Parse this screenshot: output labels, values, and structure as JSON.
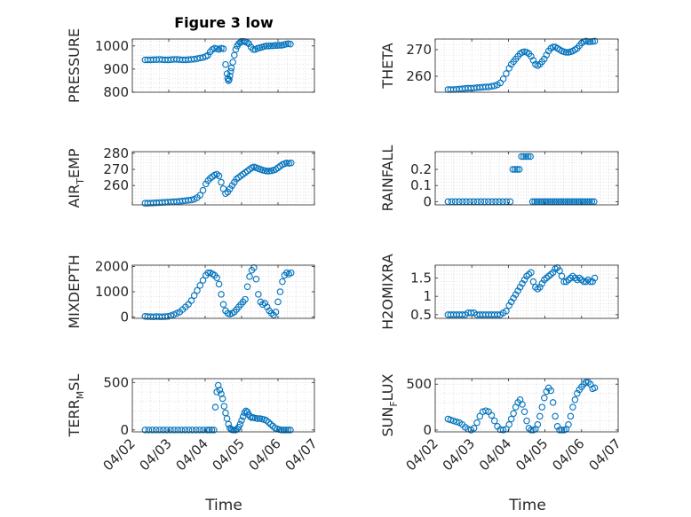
{
  "figure": {
    "title": "Figure 3 low",
    "xlabel": "Time"
  },
  "chart_data": [
    {
      "type": "scatter",
      "ylabel": "PRESSURE",
      "ylim": [
        800,
        1030
      ],
      "yticks": [
        800,
        900,
        1000
      ],
      "xlim": [
        0,
        5
      ],
      "xticks": [
        "04/02",
        "04/03",
        "04/04",
        "04/05",
        "04/06",
        "04/07"
      ],
      "grid": true,
      "x": [
        0.35,
        0.42,
        0.5,
        0.58,
        0.66,
        0.74,
        0.82,
        0.9,
        0.98,
        1.06,
        1.14,
        1.22,
        1.3,
        1.38,
        1.46,
        1.54,
        1.62,
        1.7,
        1.78,
        1.86,
        1.94,
        2.02,
        2.08,
        2.14,
        2.2,
        2.26,
        2.32,
        2.38,
        2.44,
        2.5,
        2.56,
        2.6,
        2.62,
        2.64,
        2.66,
        2.68,
        2.7,
        2.72,
        2.76,
        2.8,
        2.84,
        2.88,
        2.92,
        2.96,
        3.0,
        3.05,
        3.1,
        3.15,
        3.2,
        3.26,
        3.32,
        3.38,
        3.44,
        3.5,
        3.56,
        3.62,
        3.68,
        3.74,
        3.8,
        3.86,
        3.92,
        3.98,
        4.04,
        4.1,
        4.16,
        4.22,
        4.28,
        4.34
      ],
      "y": [
        940,
        940,
        940,
        941,
        941,
        942,
        941,
        940,
        940,
        941,
        942,
        942,
        941,
        940,
        940,
        941,
        942,
        943,
        945,
        948,
        950,
        955,
        960,
        975,
        985,
        990,
        988,
        985,
        990,
        988,
        920,
        880,
        860,
        850,
        855,
        870,
        890,
        905,
        930,
        960,
        985,
        1000,
        1010,
        1015,
        1020,
        1020,
        1018,
        1015,
        1010,
        995,
        985,
        985,
        990,
        992,
        995,
        998,
        1000,
        1000,
        1001,
        1001,
        1002,
        1002,
        1003,
        1003,
        1005,
        1008,
        1010,
        1008
      ]
    },
    {
      "type": "scatter",
      "ylabel": "THETA",
      "ylim": [
        254,
        274
      ],
      "yticks": [
        260,
        270
      ],
      "xlim": [
        0,
        5
      ],
      "xticks": [
        "04/02",
        "04/03",
        "04/04",
        "04/05",
        "04/06",
        "04/07"
      ],
      "grid": true,
      "x": [
        0.35,
        0.42,
        0.5,
        0.58,
        0.66,
        0.74,
        0.82,
        0.9,
        0.98,
        1.06,
        1.14,
        1.22,
        1.3,
        1.38,
        1.46,
        1.54,
        1.62,
        1.7,
        1.78,
        1.86,
        1.94,
        2.02,
        2.08,
        2.14,
        2.2,
        2.26,
        2.32,
        2.38,
        2.44,
        2.5,
        2.56,
        2.62,
        2.68,
        2.74,
        2.8,
        2.86,
        2.92,
        2.98,
        3.04,
        3.1,
        3.16,
        3.22,
        3.28,
        3.34,
        3.4,
        3.46,
        3.52,
        3.58,
        3.64,
        3.7,
        3.76,
        3.82,
        3.88,
        3.94,
        4.0,
        4.06,
        4.12,
        4.18,
        4.24,
        4.3,
        4.36
      ],
      "y": [
        255,
        255,
        255,
        255.1,
        255.2,
        255.3,
        255.4,
        255.5,
        255.5,
        255.6,
        255.7,
        255.8,
        255.9,
        256,
        256,
        256.2,
        256.4,
        256.8,
        257.5,
        259,
        261,
        263,
        264.5,
        265.5,
        266.5,
        267.5,
        268.5,
        269,
        269.2,
        269,
        268.5,
        267.5,
        266,
        264.5,
        264,
        264.5,
        265.5,
        266.5,
        268,
        269.5,
        270.5,
        271,
        271,
        270.5,
        270,
        269.5,
        269.2,
        269,
        269,
        269.2,
        269.5,
        270,
        270.5,
        271.5,
        272.5,
        273,
        273.2,
        273,
        273,
        273.1,
        273.2
      ]
    },
    {
      "type": "scatter",
      "ylabel": "AIR_TEMP",
      "ylim": [
        248,
        281
      ],
      "yticks": [
        260,
        270,
        280
      ],
      "xlim": [
        0,
        5
      ],
      "xticks": [
        "04/02",
        "04/03",
        "04/04",
        "04/05",
        "04/06",
        "04/07"
      ],
      "grid": true,
      "x": [
        0.35,
        0.42,
        0.5,
        0.58,
        0.66,
        0.74,
        0.82,
        0.9,
        0.98,
        1.06,
        1.14,
        1.22,
        1.3,
        1.38,
        1.46,
        1.54,
        1.62,
        1.7,
        1.78,
        1.86,
        1.94,
        2.02,
        2.08,
        2.14,
        2.2,
        2.26,
        2.32,
        2.38,
        2.44,
        2.5,
        2.56,
        2.62,
        2.68,
        2.74,
        2.8,
        2.86,
        2.92,
        2.98,
        3.04,
        3.1,
        3.16,
        3.22,
        3.28,
        3.34,
        3.4,
        3.46,
        3.52,
        3.58,
        3.64,
        3.7,
        3.76,
        3.82,
        3.88,
        3.94,
        4.0,
        4.06,
        4.12,
        4.18,
        4.24,
        4.3,
        4.36
      ],
      "y": [
        249,
        249,
        249.1,
        249.2,
        249.3,
        249.4,
        249.5,
        249.6,
        249.7,
        249.8,
        249.9,
        250,
        250.2,
        250.4,
        250.6,
        250.8,
        251,
        251.5,
        252.5,
        254,
        257,
        261,
        263,
        264.5,
        265.5,
        266.5,
        267,
        266,
        262,
        258,
        255,
        256,
        258,
        260,
        262,
        264,
        265,
        266,
        267,
        268,
        269,
        270,
        271,
        271.5,
        271,
        270.5,
        270,
        269.5,
        269.2,
        269,
        269,
        269.2,
        269.5,
        270,
        271,
        272,
        273,
        273.5,
        274,
        273.8,
        274
      ]
    },
    {
      "type": "scatter",
      "ylabel": "RAINFALL",
      "ylim": [
        -0.02,
        0.31
      ],
      "yticks": [
        0,
        0.1,
        0.2
      ],
      "xlim": [
        0,
        5
      ],
      "xticks": [
        "04/02",
        "04/03",
        "04/04",
        "04/05",
        "04/06",
        "04/07"
      ],
      "grid": true,
      "x": [
        0.35,
        0.45,
        0.55,
        0.65,
        0.75,
        0.85,
        0.95,
        1.05,
        1.15,
        1.25,
        1.35,
        1.45,
        1.55,
        1.65,
        1.75,
        1.85,
        1.95,
        2.05,
        2.12,
        2.18,
        2.24,
        2.3,
        2.36,
        2.42,
        2.48,
        2.54,
        2.6,
        2.66,
        2.72,
        2.78,
        2.84,
        2.9,
        2.96,
        3.02,
        3.08,
        3.14,
        3.2,
        3.26,
        3.32,
        3.38,
        3.44,
        3.5,
        3.56,
        3.62,
        3.68,
        3.74,
        3.8,
        3.86,
        3.92,
        3.98,
        4.04,
        4.1,
        4.16,
        4.22,
        4.28,
        4.34
      ],
      "y": [
        0,
        0,
        0,
        0,
        0,
        0,
        0,
        0,
        0,
        0,
        0,
        0,
        0,
        0,
        0,
        0,
        0,
        0,
        0.2,
        0.2,
        0.2,
        0.2,
        0.28,
        0.28,
        0.28,
        0.28,
        0.28,
        0,
        0,
        0,
        0,
        0,
        0,
        0,
        0,
        0,
        0,
        0,
        0,
        0,
        0,
        0,
        0,
        0,
        0,
        0,
        0,
        0,
        0,
        0,
        0,
        0,
        0,
        0,
        0,
        0
      ]
    },
    {
      "type": "scatter",
      "ylabel": "MIXDEPTH",
      "ylim": [
        -50,
        2050
      ],
      "yticks": [
        0,
        1000,
        2000
      ],
      "xlim": [
        0,
        5
      ],
      "xticks": [
        "04/02",
        "04/03",
        "04/04",
        "04/05",
        "04/06",
        "04/07"
      ],
      "grid": true,
      "x": [
        0.35,
        0.42,
        0.5,
        0.58,
        0.66,
        0.74,
        0.82,
        0.9,
        0.98,
        1.06,
        1.14,
        1.22,
        1.3,
        1.38,
        1.46,
        1.54,
        1.62,
        1.7,
        1.78,
        1.86,
        1.94,
        2.02,
        2.08,
        2.14,
        2.2,
        2.26,
        2.32,
        2.38,
        2.44,
        2.5,
        2.56,
        2.62,
        2.68,
        2.74,
        2.8,
        2.86,
        2.92,
        2.98,
        3.04,
        3.1,
        3.16,
        3.22,
        3.28,
        3.34,
        3.4,
        3.46,
        3.52,
        3.58,
        3.64,
        3.7,
        3.76,
        3.82,
        3.88,
        3.94,
        4.0,
        4.06,
        4.12,
        4.18,
        4.24,
        4.3,
        4.36
      ],
      "y": [
        30,
        20,
        15,
        10,
        20,
        15,
        10,
        20,
        30,
        60,
        100,
        150,
        200,
        300,
        400,
        500,
        650,
        850,
        1050,
        1250,
        1450,
        1650,
        1750,
        1750,
        1700,
        1650,
        1550,
        1300,
        900,
        500,
        250,
        150,
        120,
        150,
        200,
        300,
        400,
        500,
        600,
        700,
        1200,
        1600,
        1850,
        1950,
        1500,
        900,
        600,
        500,
        550,
        400,
        250,
        150,
        80,
        200,
        600,
        1000,
        1400,
        1650,
        1750,
        1700,
        1750
      ]
    },
    {
      "type": "scatter",
      "ylabel": "H2OMIXRA",
      "ylim": [
        0.4,
        1.85
      ],
      "yticks": [
        0.5,
        1,
        1.5
      ],
      "xlim": [
        0,
        5
      ],
      "xticks": [
        "04/02",
        "04/03",
        "04/04",
        "04/05",
        "04/06",
        "04/07"
      ],
      "grid": true,
      "x": [
        0.35,
        0.42,
        0.5,
        0.58,
        0.66,
        0.74,
        0.82,
        0.9,
        0.98,
        1.06,
        1.14,
        1.22,
        1.3,
        1.38,
        1.46,
        1.54,
        1.62,
        1.7,
        1.78,
        1.86,
        1.94,
        2.02,
        2.08,
        2.14,
        2.2,
        2.26,
        2.32,
        2.38,
        2.44,
        2.5,
        2.56,
        2.62,
        2.68,
        2.74,
        2.8,
        2.86,
        2.92,
        2.98,
        3.04,
        3.1,
        3.16,
        3.22,
        3.28,
        3.34,
        3.4,
        3.46,
        3.52,
        3.58,
        3.64,
        3.7,
        3.76,
        3.82,
        3.88,
        3.94,
        4.0,
        4.06,
        4.12,
        4.18,
        4.24,
        4.3,
        4.36
      ],
      "y": [
        0.5,
        0.5,
        0.5,
        0.5,
        0.5,
        0.5,
        0.5,
        0.55,
        0.55,
        0.55,
        0.5,
        0.5,
        0.5,
        0.5,
        0.5,
        0.5,
        0.5,
        0.5,
        0.5,
        0.55,
        0.6,
        0.75,
        0.85,
        0.95,
        1.05,
        1.15,
        1.25,
        1.35,
        1.45,
        1.55,
        1.6,
        1.65,
        1.4,
        1.25,
        1.2,
        1.25,
        1.35,
        1.45,
        1.5,
        1.55,
        1.6,
        1.65,
        1.75,
        1.78,
        1.7,
        1.55,
        1.4,
        1.4,
        1.45,
        1.5,
        1.55,
        1.5,
        1.45,
        1.5,
        1.45,
        1.4,
        1.4,
        1.45,
        1.4,
        1.4,
        1.5
      ]
    },
    {
      "type": "scatter",
      "ylabel": "TERR_MSL",
      "ylim": [
        -20,
        540
      ],
      "yticks": [
        0,
        500
      ],
      "xlim": [
        0,
        5
      ],
      "xticks": [
        "04/02",
        "04/03",
        "04/04",
        "04/05",
        "04/06",
        "04/07"
      ],
      "grid": true,
      "x": [
        0.35,
        0.45,
        0.55,
        0.65,
        0.75,
        0.85,
        0.95,
        1.05,
        1.15,
        1.25,
        1.35,
        1.45,
        1.55,
        1.65,
        1.75,
        1.85,
        1.95,
        2.05,
        2.12,
        2.18,
        2.24,
        2.28,
        2.32,
        2.36,
        2.4,
        2.44,
        2.48,
        2.52,
        2.56,
        2.6,
        2.64,
        2.68,
        2.72,
        2.76,
        2.8,
        2.84,
        2.88,
        2.92,
        2.96,
        3.0,
        3.04,
        3.08,
        3.12,
        3.16,
        3.2,
        3.24,
        3.28,
        3.32,
        3.38,
        3.44,
        3.5,
        3.56,
        3.62,
        3.68,
        3.74,
        3.8,
        3.86,
        3.92,
        3.98,
        4.04,
        4.1,
        4.16,
        4.22,
        4.28,
        4.34
      ],
      "y": [
        0,
        0,
        0,
        0,
        0,
        0,
        0,
        0,
        0,
        0,
        0,
        0,
        0,
        0,
        0,
        0,
        0,
        0,
        0,
        0,
        0,
        240,
        400,
        470,
        420,
        380,
        330,
        250,
        180,
        120,
        60,
        20,
        5,
        0,
        0,
        0,
        10,
        30,
        60,
        100,
        140,
        180,
        200,
        190,
        160,
        140,
        130,
        130,
        125,
        120,
        120,
        115,
        110,
        100,
        80,
        60,
        40,
        20,
        10,
        5,
        0,
        0,
        0,
        0,
        0
      ]
    },
    {
      "type": "scatter",
      "ylabel": "SUN_FLUX",
      "ylim": [
        -20,
        560
      ],
      "yticks": [
        0,
        500
      ],
      "xlim": [
        0,
        5
      ],
      "xticks": [
        "04/02",
        "04/03",
        "04/04",
        "04/05",
        "04/06",
        "04/07"
      ],
      "grid": true,
      "x": [
        0.35,
        0.42,
        0.5,
        0.58,
        0.66,
        0.74,
        0.82,
        0.9,
        0.98,
        1.06,
        1.14,
        1.22,
        1.3,
        1.38,
        1.46,
        1.54,
        1.62,
        1.7,
        1.78,
        1.86,
        1.94,
        2.02,
        2.08,
        2.14,
        2.2,
        2.26,
        2.32,
        2.38,
        2.44,
        2.5,
        2.56,
        2.62,
        2.68,
        2.74,
        2.8,
        2.86,
        2.92,
        2.98,
        3.04,
        3.1,
        3.16,
        3.22,
        3.28,
        3.34,
        3.4,
        3.46,
        3.52,
        3.58,
        3.64,
        3.7,
        3.76,
        3.82,
        3.88,
        3.94,
        4.0,
        4.06,
        4.12,
        4.18,
        4.24,
        4.3,
        4.36
      ],
      "y": [
        120,
        110,
        100,
        90,
        80,
        60,
        30,
        10,
        0,
        20,
        80,
        150,
        200,
        210,
        200,
        160,
        100,
        40,
        5,
        0,
        10,
        60,
        120,
        180,
        250,
        300,
        330,
        280,
        200,
        100,
        20,
        0,
        0,
        10,
        60,
        150,
        250,
        350,
        420,
        460,
        430,
        300,
        150,
        40,
        0,
        0,
        0,
        10,
        60,
        150,
        250,
        330,
        400,
        440,
        470,
        500,
        520,
        520,
        500,
        450,
        460
      ]
    }
  ]
}
